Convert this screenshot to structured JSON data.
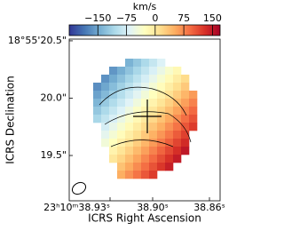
{
  "chart_data": {
    "type": "image",
    "colorbar_label": "km/s",
    "clim": [
      -225,
      170
    ],
    "cticks": [
      {
        "value": -150,
        "label": "−150"
      },
      {
        "value": -75,
        "label": "−75"
      },
      0,
      75,
      150
    ],
    "colormap": [
      "#313695",
      "#4575b4",
      "#74add1",
      "#abd9e9",
      "#e0f3f8",
      "#ffffbf",
      "#fee090",
      "#fdae61",
      "#f46d43",
      "#d73027",
      "#a50026"
    ],
    "xlabel": "ICRS Right Ascension",
    "ylabel": "ICRS Declination",
    "xlim": [
      38.95875,
      38.8525
    ],
    "xticks": [
      {
        "value": 38.93,
        "label": "23ʰ10ᵐ38.93ˢ"
      },
      {
        "value": 38.9,
        "label": "38.90ˢ"
      },
      {
        "value": 38.86,
        "label": "38.86ˢ"
      }
    ],
    "ylim": [
      19.105,
      20.515
    ],
    "yticks": [
      {
        "value": 20.5,
        "label": "18°55'20.5\""
      },
      {
        "value": 20.0,
        "label": "20.0\""
      },
      {
        "value": 19.5,
        "label": "19.5\""
      }
    ],
    "map": [
      [
        null,
        null,
        null,
        null,
        null,
        -141,
        -123,
        -105,
        -87,
        -69,
        null,
        null,
        null,
        null
      ],
      [
        null,
        null,
        null,
        -162,
        -144,
        -126,
        -108,
        -90,
        -72,
        -54,
        -36,
        -18,
        null,
        null
      ],
      [
        null,
        null,
        -165,
        -147,
        -129,
        -111,
        -93,
        -75,
        -57,
        -39,
        -21,
        -3,
        15,
        null
      ],
      [
        null,
        -168,
        -150,
        -132,
        -114,
        -96,
        -78,
        -60,
        -42,
        -24,
        -6,
        12,
        30,
        null
      ],
      [
        null,
        -153,
        -135,
        -117,
        -99,
        -81,
        -63,
        -45,
        -27,
        -9,
        9,
        27,
        45,
        63
      ],
      [
        null,
        -138,
        -120,
        -102,
        -84,
        -66,
        -48,
        -30,
        -12,
        6,
        24,
        42,
        60,
        78
      ],
      [
        null,
        -123,
        -105,
        -87,
        -69,
        -51,
        -33,
        -15,
        3,
        21,
        39,
        57,
        75,
        93
      ],
      [
        null,
        -108,
        -90,
        -72,
        -54,
        -36,
        -18,
        0,
        18,
        36,
        54,
        72,
        90,
        108
      ],
      [
        null,
        null,
        -75,
        -57,
        -39,
        -21,
        -3,
        15,
        33,
        51,
        69,
        87,
        105,
        123
      ],
      [
        null,
        null,
        -60,
        -42,
        -24,
        -6,
        12,
        30,
        48,
        66,
        84,
        102,
        120,
        null
      ],
      [
        null,
        null,
        -45,
        -27,
        -9,
        9,
        27,
        45,
        63,
        81,
        99,
        117,
        135,
        null
      ],
      [
        null,
        null,
        null,
        -12,
        6,
        24,
        42,
        60,
        78,
        96,
        114,
        132,
        150,
        null
      ],
      [
        null,
        null,
        null,
        3,
        21,
        39,
        57,
        75,
        93,
        111,
        129,
        147,
        null,
        null
      ],
      [
        null,
        null,
        null,
        null,
        36,
        54,
        72,
        90,
        108,
        126,
        144,
        null,
        null,
        null
      ],
      [
        null,
        null,
        null,
        null,
        51,
        69,
        87,
        105,
        123,
        null,
        null,
        null,
        null,
        null
      ]
    ]
  }
}
